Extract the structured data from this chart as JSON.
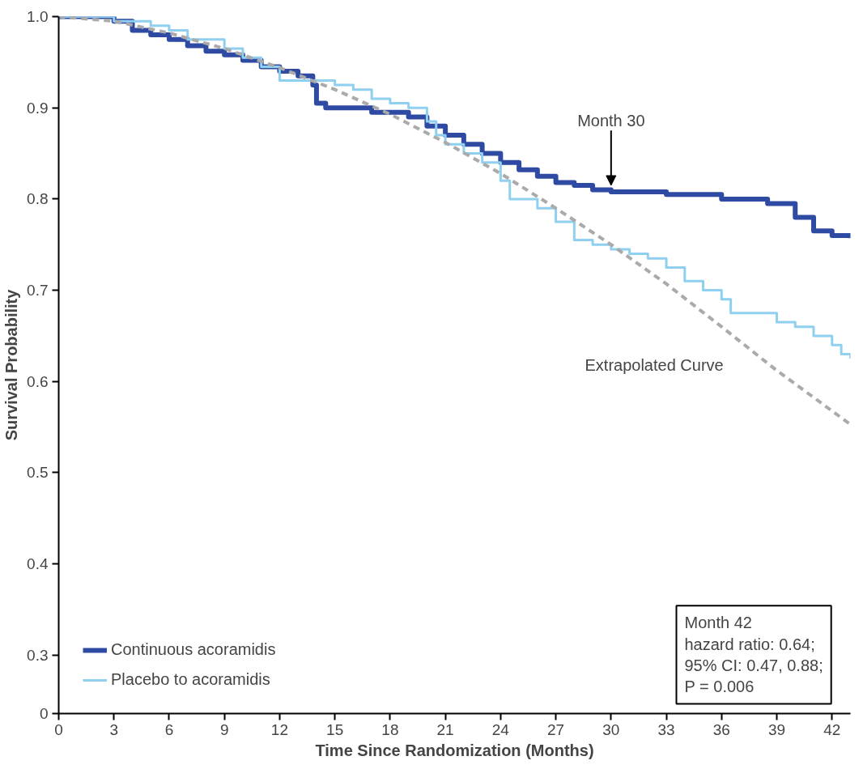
{
  "chart_data": {
    "type": "step",
    "xlabel": "Time Since Randomization (Months)",
    "ylabel": "Survival Probability",
    "xlim": [
      0,
      43
    ],
    "xticks": [
      0,
      3,
      6,
      9,
      12,
      15,
      18,
      21,
      24,
      27,
      30,
      33,
      36,
      39,
      42
    ],
    "ylim": [
      0.236,
      1.0
    ],
    "yticks": [
      {
        "value": 0.236,
        "label": "0"
      },
      0.3,
      0.4,
      0.5,
      0.6,
      0.7,
      0.8,
      0.9,
      {
        "value": 1.0,
        "label": "1.0"
      }
    ],
    "grid": false,
    "legend": "bottom left",
    "marker": "none",
    "series": [
      {
        "name": "Continuous acoramidis",
        "color": "#2e4aa3",
        "x": [
          0,
          3,
          4,
          5,
          6,
          7,
          8,
          9,
          10,
          11,
          12,
          13,
          13.8,
          14,
          14.5,
          17,
          19,
          20,
          21,
          22,
          23,
          24,
          25,
          26,
          27,
          28,
          29,
          30,
          33,
          36,
          38.5,
          40,
          41,
          42,
          43
        ],
        "values": [
          1.0,
          0.995,
          0.985,
          0.98,
          0.975,
          0.968,
          0.962,
          0.958,
          0.952,
          0.945,
          0.94,
          0.935,
          0.925,
          0.905,
          0.9,
          0.895,
          0.89,
          0.88,
          0.87,
          0.86,
          0.85,
          0.84,
          0.832,
          0.825,
          0.818,
          0.815,
          0.81,
          0.808,
          0.805,
          0.8,
          0.795,
          0.78,
          0.765,
          0.76,
          0.757
        ]
      },
      {
        "name": "Placebo to acoramidis",
        "color": "#8fd0f0",
        "x": [
          0,
          3,
          5,
          6,
          7,
          9,
          10,
          11,
          12,
          13.5,
          15,
          16,
          17,
          18,
          19,
          20,
          20.5,
          21,
          22,
          23,
          24,
          24.5,
          26,
          27,
          28,
          29,
          30,
          31,
          32,
          33,
          34,
          35,
          36,
          36.5,
          38,
          39,
          40,
          41,
          42,
          42.5,
          43
        ],
        "values": [
          1.0,
          0.995,
          0.99,
          0.985,
          0.975,
          0.965,
          0.955,
          0.945,
          0.93,
          0.93,
          0.925,
          0.92,
          0.91,
          0.905,
          0.9,
          0.885,
          0.87,
          0.86,
          0.85,
          0.84,
          0.82,
          0.8,
          0.79,
          0.775,
          0.755,
          0.75,
          0.745,
          0.74,
          0.735,
          0.725,
          0.71,
          0.7,
          0.69,
          0.675,
          0.675,
          0.665,
          0.66,
          0.65,
          0.64,
          0.63,
          0.625
        ]
      },
      {
        "type": "line",
        "line_style": "dashed",
        "color": "#aaaaaa",
        "x": [
          0,
          3,
          6,
          9,
          12,
          15,
          18,
          21,
          24,
          27,
          30,
          33,
          36,
          39,
          43
        ],
        "values": [
          1.0,
          0.995,
          0.982,
          0.965,
          0.944,
          0.92,
          0.893,
          0.862,
          0.828,
          0.79,
          0.75,
          0.707,
          0.66,
          0.612,
          0.553
        ]
      }
    ],
    "annotations": [
      {
        "text": "Month 30",
        "x": 30,
        "y": 0.81
      },
      "Extrapolated Curve",
      "Month 42\nhazard ratio: 0.64;\n95% CI: 0.47, 0.88;\nP = 0.006"
    ]
  }
}
